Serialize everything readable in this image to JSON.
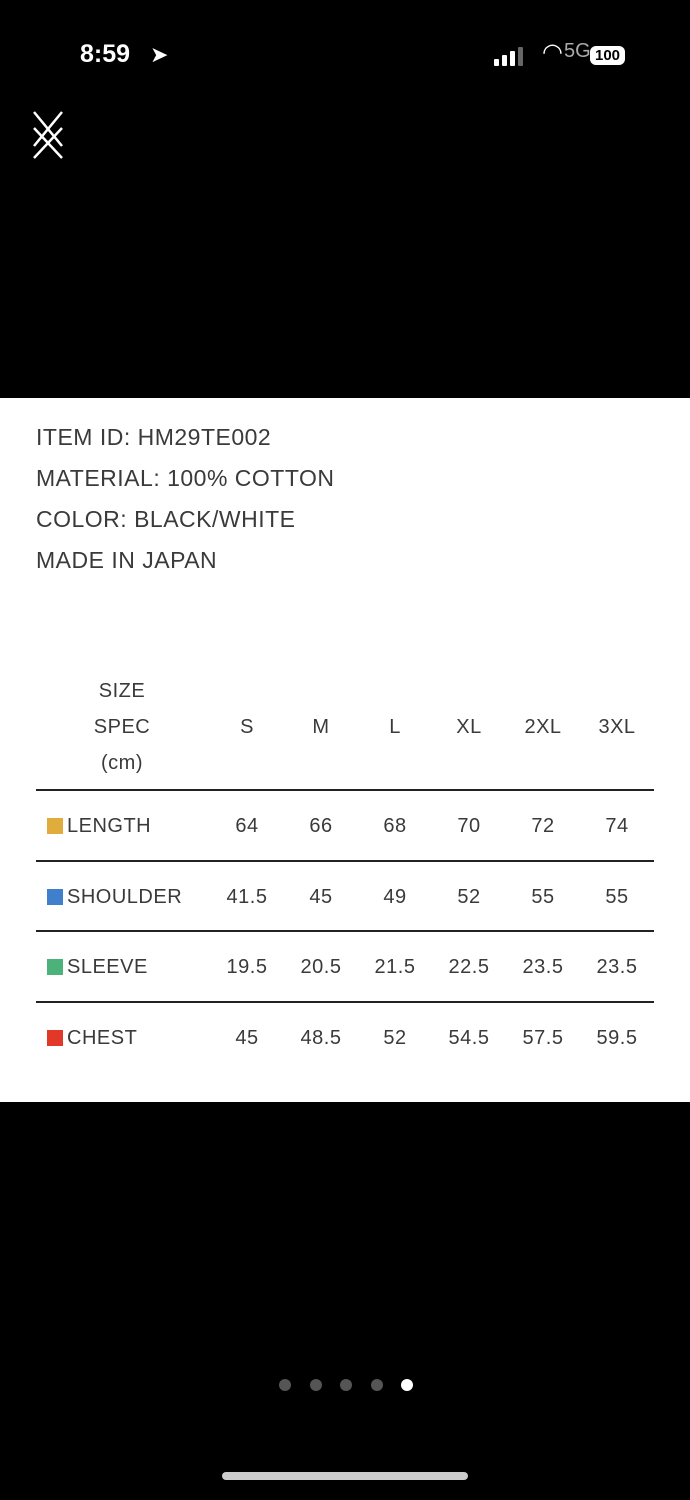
{
  "status_bar": {
    "time": "8:59",
    "network": "5G",
    "battery": "100"
  },
  "product": {
    "lines": [
      "ITEM ID: HM29TE002",
      "MATERIAL: 100% COTTON",
      "COLOR: BLACK/WHITE",
      "MADE IN JAPAN"
    ]
  },
  "size_table": {
    "header": [
      "SIZE",
      "SPEC",
      "(cm)"
    ],
    "sizes": [
      "S",
      "M",
      "L",
      "XL",
      "2XL",
      "3XL"
    ],
    "rows": [
      {
        "label": "LENGTH",
        "color": "#E0AC3C",
        "values": [
          "64",
          "66",
          "68",
          "70",
          "72",
          "74"
        ]
      },
      {
        "label": "SHOULDER",
        "color": "#3F7FCC",
        "values": [
          "41.5",
          "45",
          "49",
          "52",
          "55",
          "55"
        ]
      },
      {
        "label": "SLEEVE",
        "color": "#4CB27A",
        "values": [
          "19.5",
          "20.5",
          "21.5",
          "22.5",
          "23.5",
          "23.5"
        ]
      },
      {
        "label": "CHEST",
        "color": "#E2382A",
        "values": [
          "45",
          "48.5",
          "52",
          "54.5",
          "57.5",
          "59.5"
        ]
      }
    ]
  },
  "pager": {
    "count": 5,
    "active_index": 4
  }
}
